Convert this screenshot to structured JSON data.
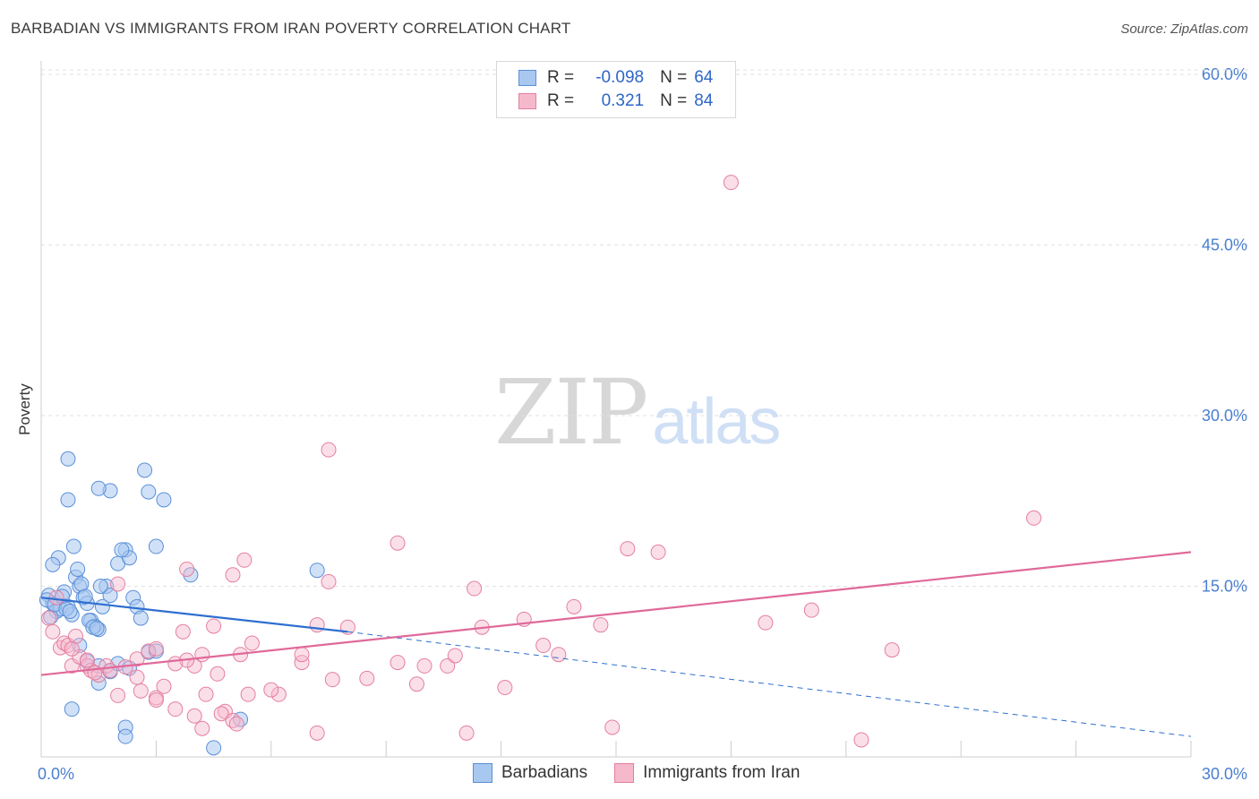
{
  "title": "BARBADIAN VS IMMIGRANTS FROM IRAN POVERTY CORRELATION CHART",
  "source": "Source: ZipAtlas.com",
  "watermark": {
    "zip": "ZIP",
    "atlas": "atlas"
  },
  "legend_top": {
    "rows": [
      {
        "r_label": "R =",
        "r_value": "-0.098",
        "n_label": "N =",
        "n_value": "64"
      },
      {
        "r_label": "R =",
        "r_value": "0.321",
        "n_label": "N =",
        "n_value": "84"
      }
    ]
  },
  "legend_bottom": {
    "items": [
      "Barbadians",
      "Immigrants from Iran"
    ]
  },
  "colors": {
    "blue_fill": "#a9c8f0",
    "blue_stroke": "#5a8fd8",
    "blue_line": "#2e6fd0",
    "pink_fill": "#f6b9cb",
    "pink_stroke": "#e47fa0",
    "pink_line": "#e0699a",
    "tick_text": "#4a7fd0",
    "grid": "#e2e2e2"
  },
  "chart_data": {
    "type": "scatter",
    "title": "BARBADIAN VS IMMIGRANTS FROM IRAN POVERTY CORRELATION CHART",
    "xlabel": "",
    "ylabel": "Poverty",
    "xlim": [
      0,
      30
    ],
    "ylim": [
      0,
      64
    ],
    "x_tick_labels": [
      "0.0%",
      "30.0%"
    ],
    "y_ticks": [
      15,
      30,
      45,
      60
    ],
    "y_tick_labels": [
      "15.0%",
      "30.0%",
      "45.0%",
      "60.0%"
    ],
    "grid": true,
    "legend": "bottom-center",
    "series": [
      {
        "name": "Barbadians",
        "trend": {
          "x0": 0,
          "y0": 14.0,
          "x1": 8.0,
          "y1": 11.0,
          "dashed_to_x": 30,
          "dashed_to_y": 1.8
        },
        "points": [
          [
            0.2,
            14.2
          ],
          [
            0.3,
            13.5
          ],
          [
            0.4,
            12.8
          ],
          [
            0.5,
            13.0
          ],
          [
            0.6,
            14.5
          ],
          [
            0.7,
            13.2
          ],
          [
            0.8,
            12.5
          ],
          [
            0.9,
            15.8
          ],
          [
            1.0,
            15.0
          ],
          [
            1.1,
            14.0
          ],
          [
            1.2,
            13.5
          ],
          [
            1.3,
            12.0
          ],
          [
            1.4,
            11.5
          ],
          [
            1.5,
            11.2
          ],
          [
            1.6,
            13.2
          ],
          [
            1.7,
            15.0
          ],
          [
            1.8,
            14.2
          ],
          [
            0.15,
            13.8
          ],
          [
            0.25,
            12.3
          ],
          [
            0.35,
            13.4
          ],
          [
            0.45,
            17.5
          ],
          [
            0.55,
            14.1
          ],
          [
            0.65,
            13.0
          ],
          [
            0.75,
            12.8
          ],
          [
            0.85,
            18.5
          ],
          [
            0.95,
            16.5
          ],
          [
            1.05,
            15.2
          ],
          [
            1.15,
            14.1
          ],
          [
            1.25,
            12.0
          ],
          [
            1.35,
            11.4
          ],
          [
            1.45,
            11.3
          ],
          [
            1.55,
            15.0
          ],
          [
            0.3,
            16.9
          ],
          [
            2.0,
            17.0
          ],
          [
            2.2,
            18.2
          ],
          [
            2.3,
            17.5
          ],
          [
            2.4,
            14.0
          ],
          [
            2.5,
            13.2
          ],
          [
            2.6,
            12.2
          ],
          [
            3.0,
            18.5
          ],
          [
            3.2,
            22.6
          ],
          [
            2.7,
            25.2
          ],
          [
            2.8,
            23.3
          ],
          [
            1.8,
            23.4
          ],
          [
            1.5,
            23.6
          ],
          [
            0.7,
            22.6
          ],
          [
            0.7,
            26.2
          ],
          [
            2.1,
            18.2
          ],
          [
            1.0,
            9.8
          ],
          [
            1.2,
            8.4
          ],
          [
            1.5,
            8.0
          ],
          [
            1.8,
            7.5
          ],
          [
            2.0,
            8.2
          ],
          [
            2.3,
            7.8
          ],
          [
            2.8,
            9.2
          ],
          [
            3.0,
            9.3
          ],
          [
            3.9,
            16.0
          ],
          [
            7.2,
            16.4
          ],
          [
            1.5,
            6.5
          ],
          [
            2.2,
            2.6
          ],
          [
            2.2,
            1.8
          ],
          [
            4.5,
            0.8
          ],
          [
            5.2,
            3.3
          ],
          [
            0.8,
            4.2
          ]
        ]
      },
      {
        "name": "Immigrants from Iran",
        "trend": {
          "x0": 0,
          "y0": 7.2,
          "x1": 30,
          "y1": 18.0
        },
        "points": [
          [
            0.2,
            12.2
          ],
          [
            0.3,
            11.0
          ],
          [
            0.4,
            14.0
          ],
          [
            0.5,
            9.6
          ],
          [
            0.6,
            10.0
          ],
          [
            0.7,
            9.8
          ],
          [
            0.8,
            8.0
          ],
          [
            0.9,
            10.6
          ],
          [
            1.0,
            8.8
          ],
          [
            1.2,
            8.0
          ],
          [
            1.3,
            7.6
          ],
          [
            1.5,
            7.2
          ],
          [
            1.7,
            8.0
          ],
          [
            1.8,
            7.6
          ],
          [
            2.0,
            15.2
          ],
          [
            2.2,
            7.9
          ],
          [
            2.5,
            8.6
          ],
          [
            2.8,
            9.3
          ],
          [
            3.0,
            5.2
          ],
          [
            3.2,
            6.2
          ],
          [
            3.5,
            4.2
          ],
          [
            3.0,
            9.5
          ],
          [
            2.6,
            5.8
          ],
          [
            3.7,
            11.0
          ],
          [
            4.0,
            8.0
          ],
          [
            4.2,
            9.0
          ],
          [
            4.5,
            11.5
          ],
          [
            4.6,
            7.3
          ],
          [
            4.8,
            4.0
          ],
          [
            5.0,
            16.0
          ],
          [
            5.2,
            9.0
          ],
          [
            5.3,
            17.3
          ],
          [
            5.5,
            10.0
          ],
          [
            4.7,
            3.8
          ],
          [
            5.0,
            3.2
          ],
          [
            5.1,
            2.9
          ],
          [
            4.3,
            5.5
          ],
          [
            4.2,
            2.5
          ],
          [
            4.0,
            3.6
          ],
          [
            3.8,
            16.5
          ],
          [
            3.0,
            5.0
          ],
          [
            6.2,
            5.5
          ],
          [
            6.8,
            8.3
          ],
          [
            6.8,
            9.0
          ],
          [
            7.2,
            11.6
          ],
          [
            7.5,
            15.4
          ],
          [
            7.6,
            6.8
          ],
          [
            8.0,
            11.4
          ],
          [
            7.5,
            27.0
          ],
          [
            8.5,
            6.9
          ],
          [
            9.3,
            8.3
          ],
          [
            9.3,
            18.8
          ],
          [
            9.8,
            6.4
          ],
          [
            10.0,
            8.0
          ],
          [
            10.6,
            8.0
          ],
          [
            10.8,
            8.9
          ],
          [
            11.3,
            14.8
          ],
          [
            11.5,
            11.4
          ],
          [
            12.1,
            6.1
          ],
          [
            12.6,
            12.1
          ],
          [
            13.1,
            9.8
          ],
          [
            13.5,
            9.0
          ],
          [
            13.9,
            13.2
          ],
          [
            14.6,
            11.6
          ],
          [
            15.3,
            18.3
          ],
          [
            16.1,
            18.0
          ],
          [
            18.9,
            11.8
          ],
          [
            20.1,
            12.9
          ],
          [
            22.2,
            9.4
          ],
          [
            25.9,
            21.0
          ],
          [
            18.0,
            50.5
          ],
          [
            14.9,
            2.6
          ],
          [
            21.4,
            1.5
          ],
          [
            11.1,
            2.1
          ],
          [
            7.2,
            2.1
          ],
          [
            5.4,
            5.5
          ],
          [
            3.8,
            8.5
          ],
          [
            2.0,
            5.4
          ],
          [
            1.4,
            7.4
          ],
          [
            2.5,
            7.0
          ],
          [
            1.2,
            8.5
          ],
          [
            0.8,
            9.5
          ],
          [
            3.5,
            8.2
          ],
          [
            6.0,
            5.9
          ]
        ]
      }
    ]
  }
}
